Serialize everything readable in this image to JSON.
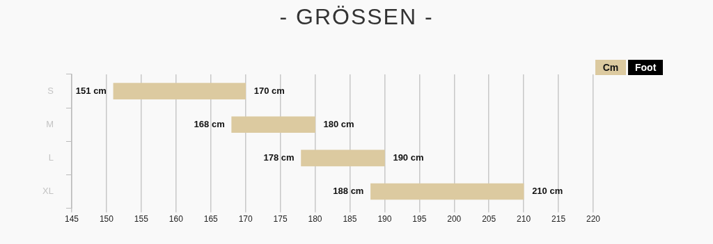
{
  "chart_data": {
    "type": "bar",
    "title": "- GRÖSSEN -",
    "orientation": "horizontal",
    "categories": [
      "S",
      "M",
      "L",
      "XL"
    ],
    "base": [
      151,
      168,
      178,
      188
    ],
    "values": [
      19,
      12,
      12,
      22
    ],
    "color": "#dccaa0",
    "xlim": [
      145,
      220
    ],
    "xticks": [
      145,
      150,
      155,
      160,
      165,
      170,
      175,
      180,
      185,
      190,
      195,
      200,
      205,
      210,
      215,
      220
    ],
    "grid": "x",
    "legend": false,
    "annotations": [
      "Cm",
      "Foot",
      {
        "text": "151 cm",
        "x": 151,
        "y": "S"
      },
      {
        "text": "170 cm",
        "x": 170,
        "y": "S"
      },
      {
        "text": "168 cm",
        "x": 168,
        "y": "M"
      },
      {
        "text": "180 cm",
        "x": 180,
        "y": "M"
      },
      {
        "text": "178 cm",
        "x": 178,
        "y": "L"
      },
      {
        "text": "190 cm",
        "x": 190,
        "y": "L"
      },
      {
        "text": "188 cm",
        "x": 188,
        "y": "XL"
      },
      {
        "text": "210 cm",
        "x": 210,
        "y": "XL"
      }
    ]
  }
}
